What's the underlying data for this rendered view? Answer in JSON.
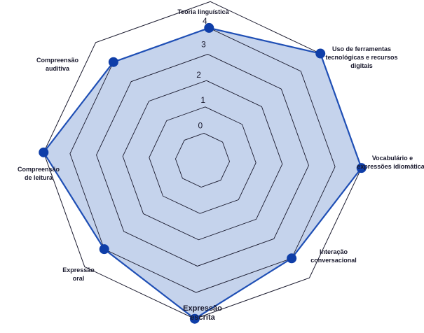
{
  "chart_data": {
    "type": "radar",
    "title": "",
    "axes": [
      [
        "Teoria linguística"
      ],
      [
        "Uso de ferramentas",
        "tecnológicas e recursos",
        "digitais"
      ],
      [
        "Vocabulário e",
        "expressões idiomáticas"
      ],
      [
        "Interação",
        "conversacional"
      ],
      [
        "Expressão",
        "escrita"
      ],
      [
        "Expressão",
        "oral"
      ],
      [
        "Compreensão",
        "de leitura"
      ],
      [
        "Compreensão",
        "auditiva"
      ]
    ],
    "rlim": [
      0,
      5
    ],
    "ticks": [
      "0",
      "1",
      "2",
      "3",
      "4",
      "5"
    ],
    "series": [
      {
        "values": [
          4,
          5,
          5,
          4,
          5,
          4,
          5,
          4
        ]
      }
    ],
    "colors": {
      "fill": "#c5d3ec",
      "line": "#1f4fb5",
      "marker": "#0f3ea8",
      "grid": "#1a1a2e"
    },
    "grid": true
  }
}
